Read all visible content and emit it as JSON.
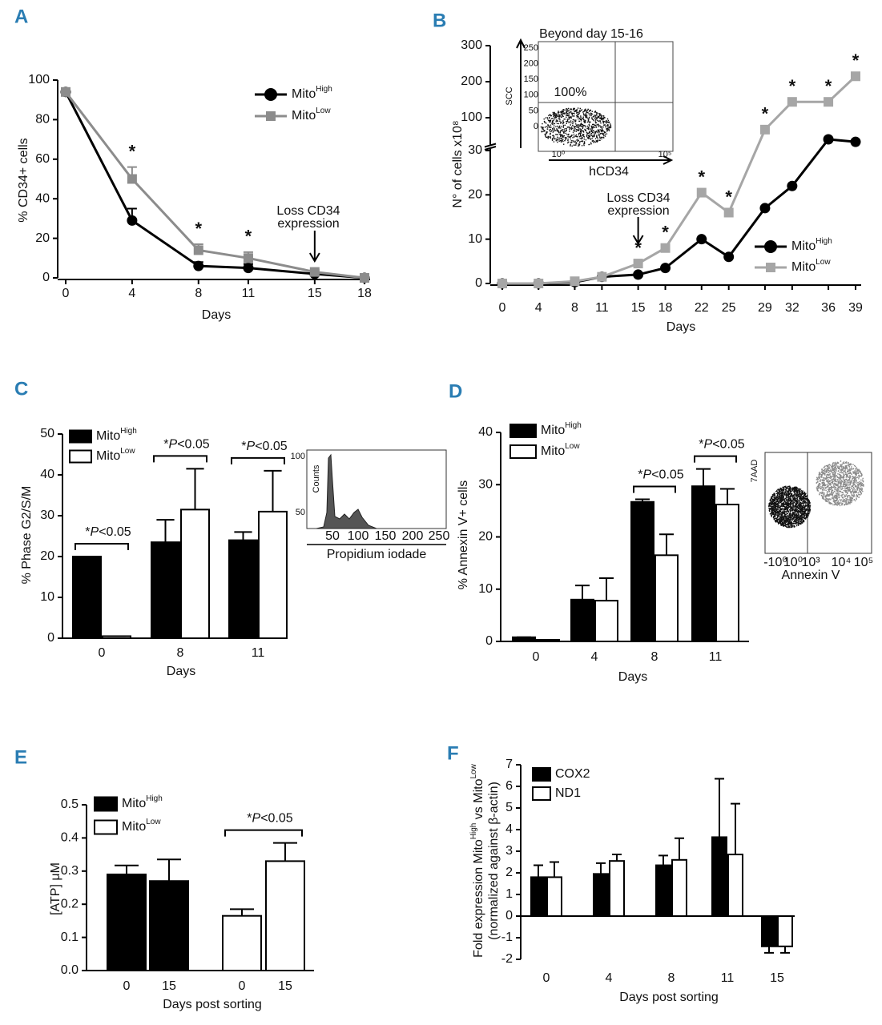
{
  "chart_data": [
    {
      "panel": "A",
      "type": "line",
      "xlabel": "Days",
      "ylabel": "% CD34+ cells",
      "x": [
        0,
        4,
        8,
        11,
        15,
        18
      ],
      "xlim": [
        0,
        18
      ],
      "xticks": [
        0,
        4,
        8,
        11,
        15,
        18
      ],
      "ylim": [
        0,
        100
      ],
      "yticks": [
        0,
        20,
        40,
        60,
        80,
        100
      ],
      "series": [
        {
          "name": "Mito",
          "superscript": "High",
          "color": "#000000",
          "marker": "circle",
          "values": [
            94,
            29,
            6,
            5,
            2,
            0
          ],
          "errors": [
            0,
            6,
            2,
            2,
            0,
            0
          ]
        },
        {
          "name": "Mito",
          "superscript": "Low",
          "color": "#8c8c8c",
          "marker": "square",
          "values": [
            94,
            50,
            14,
            10,
            3,
            0
          ],
          "errors": [
            0,
            6,
            3,
            3,
            1,
            0
          ]
        }
      ],
      "significance": {
        "label": "*",
        "x": [
          4,
          8,
          11
        ]
      },
      "annotation": {
        "lines": [
          "Loss CD34",
          "expression"
        ],
        "x": 15
      }
    },
    {
      "panel": "B",
      "type": "line",
      "xlabel": "Days",
      "ylabel": "N° of cells x10⁸",
      "x": [
        0,
        4,
        8,
        11,
        15,
        18,
        22,
        25,
        29,
        32,
        36,
        39
      ],
      "xlim": [
        0,
        39
      ],
      "xticks": [
        0,
        4,
        8,
        11,
        15,
        18,
        22,
        25,
        29,
        32,
        36,
        39
      ],
      "ylim": [
        0,
        300
      ],
      "y_break": 30,
      "yticks": [
        0,
        10,
        20,
        30,
        100,
        200,
        300
      ],
      "series": [
        {
          "name": "Mito",
          "superscript": "High",
          "color": "#000000",
          "marker": "circle",
          "values": [
            0,
            0,
            0.3,
            1.5,
            2,
            3.5,
            10,
            6,
            17,
            22,
            40,
            33
          ]
        },
        {
          "name": "Mito",
          "superscript": "Low",
          "color": "#a6a6a6",
          "marker": "square",
          "values": [
            0,
            0,
            0.5,
            1.5,
            4.5,
            8,
            20.5,
            16,
            67,
            144,
            144,
            215
          ]
        }
      ],
      "significance": {
        "label": "*",
        "x": [
          15,
          18,
          22,
          25,
          29,
          32,
          36,
          39
        ]
      },
      "annotation": {
        "lines": [
          "Loss CD34",
          "expression"
        ],
        "x": 15
      },
      "inset": {
        "title": "Beyond day 15-16",
        "xlabel": "hCD34",
        "ylabel": "SCC",
        "xtick_labels": [
          "10⁰",
          "10⁵"
        ],
        "ytick_labels": [
          "250",
          "200",
          "150",
          "100",
          "50",
          "0"
        ],
        "quadrant_label": "100%"
      }
    },
    {
      "panel": "C",
      "type": "bar",
      "xlabel": "Days",
      "ylabel": "% Phase G2/S/M",
      "categories": [
        "0",
        "8",
        "11"
      ],
      "ylim": [
        0,
        50
      ],
      "yticks": [
        0,
        10,
        20,
        30,
        40,
        50
      ],
      "series": [
        {
          "name": "Mito",
          "superscript": "High",
          "color": "#000000",
          "values": [
            20,
            23.5,
            24
          ],
          "errors": [
            0,
            5.5,
            2
          ]
        },
        {
          "name": "Mito",
          "superscript": "Low",
          "color": "#ffffff",
          "values": [
            0.5,
            31.5,
            31
          ],
          "errors": [
            0,
            10,
            10
          ]
        }
      ],
      "significance": {
        "label": [
          "*",
          "P",
          "<0.05"
        ],
        "groups": [
          [
            0
          ],
          [
            1
          ],
          [
            2
          ]
        ]
      },
      "inset": {
        "xlabel": "Propidium iodade",
        "ylabel": "Counts",
        "xtick_labels": [
          "50",
          "100",
          "150",
          "200",
          "250"
        ],
        "ytick_labels": [
          "100",
          "50"
        ]
      }
    },
    {
      "panel": "D",
      "type": "bar",
      "xlabel": "Days",
      "ylabel": "% Annexin V+ cells",
      "categories": [
        "0",
        "4",
        "8",
        "11"
      ],
      "ylim": [
        0,
        40
      ],
      "yticks": [
        0,
        10,
        20,
        30,
        40
      ],
      "series": [
        {
          "name": "Mito",
          "superscript": "High",
          "color": "#000000",
          "values": [
            0.8,
            8,
            26.7,
            29.7
          ],
          "errors": [
            0,
            2.7,
            0.5,
            3.3
          ]
        },
        {
          "name": "Mito",
          "superscript": "Low",
          "color": "#ffffff",
          "values": [
            0.3,
            7.8,
            16.5,
            26.2
          ],
          "errors": [
            0,
            4.3,
            4,
            3
          ]
        }
      ],
      "significance": {
        "label": [
          "*",
          "P",
          "<0.05"
        ],
        "groups": [
          [
            2
          ],
          [
            3
          ]
        ]
      },
      "inset": {
        "xlabel": "Annexin V",
        "ylabel": "7AAD",
        "xtick_labels": [
          "-10⁰",
          "10⁰",
          "10³",
          "10⁴",
          "10⁵"
        ]
      }
    },
    {
      "panel": "E",
      "type": "bar",
      "xlabel": "Days post sorting",
      "ylabel": "[ATP] μM",
      "categories": [
        "0",
        "15",
        "0",
        "15"
      ],
      "ylim": [
        0,
        0.5
      ],
      "yticks": [
        {
          "value": 0,
          "label": "0.0"
        },
        0.1,
        0.2,
        0.3,
        0.4,
        0.5
      ],
      "series": [
        {
          "name": "Mito",
          "superscript": "High",
          "color": "#000000",
          "values": [
            0.29,
            0.27,
            null,
            null
          ],
          "errors": [
            0.027,
            0.065,
            null,
            null
          ]
        },
        {
          "name": "Mito",
          "superscript": "Low",
          "color": "#ffffff",
          "values": [
            null,
            null,
            0.165,
            0.33
          ],
          "errors": [
            null,
            null,
            0.02,
            0.055
          ]
        }
      ],
      "significance": {
        "label": [
          "*",
          "P",
          "<0.05"
        ],
        "groups": [
          [
            2,
            3
          ]
        ]
      }
    },
    {
      "panel": "F",
      "type": "bar",
      "xlabel": "Days post sorting",
      "ylabel": [
        "Fold expression Mito",
        "High",
        " vs Mito",
        "Low"
      ],
      "ylabel2": "(normalized against β-actin)",
      "categories": [
        "0",
        "4",
        "8",
        "11",
        "15"
      ],
      "ylim": [
        -2,
        7
      ],
      "yticks": [
        -2,
        -1,
        0,
        1,
        2,
        3,
        4,
        5,
        6,
        7
      ],
      "series": [
        {
          "name": "COX2",
          "color": "#000000",
          "values": [
            1.8,
            1.95,
            2.35,
            3.65,
            -1.4
          ],
          "errors": [
            0.55,
            0.5,
            0.45,
            2.7,
            0.3
          ]
        },
        {
          "name": "ND1",
          "color": "#ffffff",
          "values": [
            1.8,
            2.55,
            2.6,
            2.85,
            -1.4
          ],
          "errors": [
            0.7,
            0.3,
            1.0,
            2.35,
            0.3
          ]
        }
      ]
    }
  ]
}
